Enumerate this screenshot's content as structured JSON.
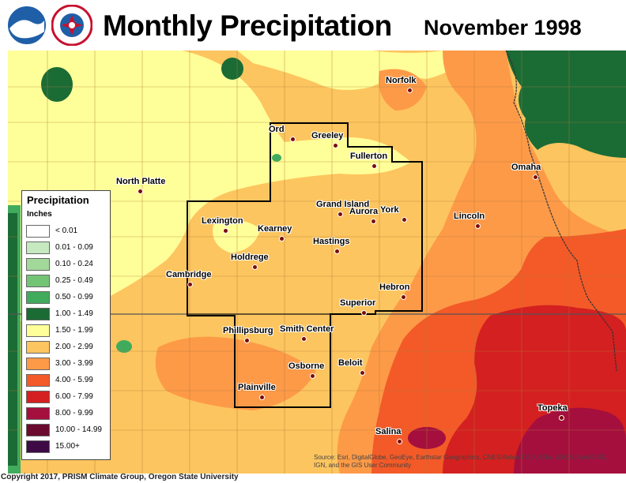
{
  "header": {
    "title": "Monthly Precipitation",
    "date": "November 1998",
    "logos": [
      "noaa-logo",
      "national-weather-service-logo"
    ]
  },
  "legend": {
    "title": "Precipitation",
    "units": "Inches",
    "items": [
      {
        "label": "< 0.01",
        "color": "#ffffff"
      },
      {
        "label": "0.01 - 0.09",
        "color": "#c6e9c0"
      },
      {
        "label": "0.10 - 0.24",
        "color": "#a3d89b"
      },
      {
        "label": "0.25 - 0.49",
        "color": "#74c476"
      },
      {
        "label": "0.50 - 0.99",
        "color": "#41ab5d"
      },
      {
        "label": "1.00 - 1.49",
        "color": "#1b6b35"
      },
      {
        "label": "1.50 - 1.99",
        "color": "#ffff99"
      },
      {
        "label": "2.00 - 2.99",
        "color": "#fdc55f"
      },
      {
        "label": "3.00 - 3.99",
        "color": "#fd9a48"
      },
      {
        "label": "4.00 - 5.99",
        "color": "#f35a28"
      },
      {
        "label": "6.00 - 7.99",
        "color": "#d42020"
      },
      {
        "label": "8.00 - 9.99",
        "color": "#a50f3e"
      },
      {
        "label": "10.00 - 14.99",
        "color": "#6b0a2f"
      },
      {
        "label": "15.00+",
        "color": "#3d0a45"
      }
    ]
  },
  "cities": [
    "Norfolk",
    "Ord",
    "Greeley",
    "Fullerton",
    "Omaha",
    "North Platte",
    "Grand Island",
    "Aurora",
    "York",
    "Lincoln",
    "Lexington",
    "Kearney",
    "Hastings",
    "Holdrege",
    "Cambridge",
    "Hebron",
    "Superior",
    "Phillipsburg",
    "Smith Center",
    "Beloit",
    "Osborne",
    "Plainville",
    "Topeka",
    "Salina"
  ],
  "copyright": "Copyright 2017, PRISM Climate Group, Oregon State University",
  "source": "Source: Esri, DigitalGlobe, GeoEye, Earthstar Geographics, CNES/Airbus DS, USDA, USGS, AeroGRID, IGN, and the GIS User Community"
}
